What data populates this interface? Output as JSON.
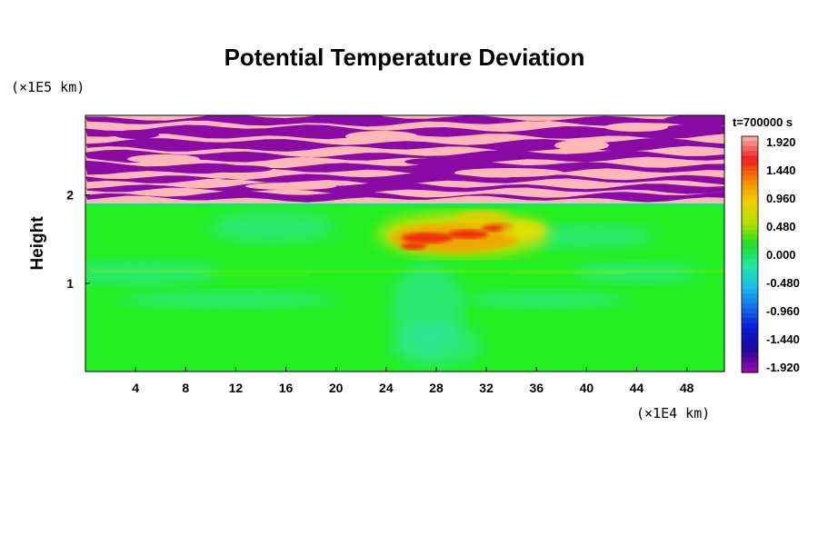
{
  "chart_data": {
    "type": "heatmap",
    "title": "Potential Temperature Deviation",
    "ylabel": "Height",
    "y_unit": "(×1E5 km)",
    "x_unit": "(×1E4 km)",
    "time_label": "t=700000 s",
    "x_ticks": [
      "4",
      "8",
      "12",
      "16",
      "20",
      "24",
      "28",
      "32",
      "36",
      "40",
      "44",
      "48"
    ],
    "y_ticks": [
      "1",
      "2"
    ],
    "xlim": [
      0,
      51
    ],
    "ylim": [
      0,
      2.9
    ],
    "colorbar": {
      "labels": [
        "1.920",
        "1.440",
        "0.960",
        "0.480",
        "0.000",
        "-0.480",
        "-0.960",
        "-1.440",
        "-1.920"
      ],
      "range": [
        -1.92,
        1.92
      ],
      "colors": [
        "#f6a3a3",
        "#ee1d1d",
        "#f58a00",
        "#f0d000",
        "#b4e000",
        "#22dd22",
        "#20e8a0",
        "#18c0e8",
        "#1570ea",
        "#0a18d8",
        "#20089a",
        "#8e0aa8"
      ]
    },
    "field_description_colors": {
      "upper_band_a": "#ffb8b8",
      "upper_band_b": "#8a0aa6",
      "lower_region": "#22ee22",
      "cool_patch": "#30e6b0",
      "warm_patch": "#ee2a10"
    },
    "grid": false
  }
}
